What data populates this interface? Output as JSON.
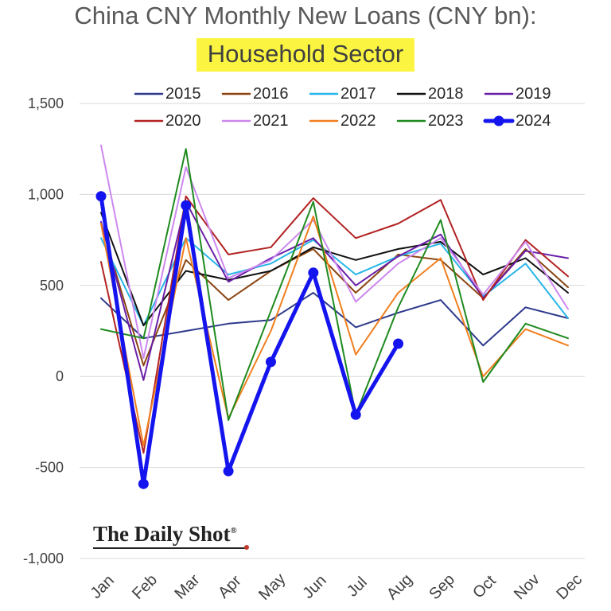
{
  "title": {
    "line1": "China CNY Monthly New Loans (CNY bn):",
    "line2": "Household Sector",
    "highlight_color": "#fbf542"
  },
  "watermark": "The Daily Shot",
  "watermark_mark": "®",
  "chart_data": {
    "type": "line",
    "title": "China CNY Monthly New Loans (CNY bn): Household Sector",
    "xlabel": "",
    "ylabel": "",
    "categories": [
      "Jan",
      "Feb",
      "Mar",
      "Apr",
      "May",
      "Jun",
      "Jul",
      "Aug",
      "Sep",
      "Oct",
      "Nov",
      "Dec"
    ],
    "ylim": [
      -1000,
      1500
    ],
    "yticks": [
      -1000,
      -500,
      0,
      500,
      1000,
      1500
    ],
    "ytick_labels": [
      "-1,000",
      "-500",
      "0",
      "500",
      "1,000",
      "1,500"
    ],
    "grid": "horizontal",
    "legend_position": "top",
    "series": [
      {
        "name": "2015",
        "color": "#2e3a8c",
        "width": 2,
        "values": [
          430,
          210,
          250,
          290,
          310,
          460,
          270,
          350,
          420,
          170,
          380,
          320
        ]
      },
      {
        "name": "2016",
        "color": "#8b4513",
        "width": 2,
        "values": [
          840,
          60,
          640,
          420,
          580,
          700,
          460,
          670,
          640,
          430,
          700,
          490
        ]
      },
      {
        "name": "2017",
        "color": "#29b6e8",
        "width": 2,
        "values": [
          760,
          280,
          760,
          560,
          620,
          750,
          560,
          660,
          730,
          440,
          620,
          320
        ]
      },
      {
        "name": "2018",
        "color": "#111111",
        "width": 2,
        "values": [
          900,
          280,
          580,
          530,
          580,
          710,
          640,
          700,
          740,
          560,
          650,
          460
        ]
      },
      {
        "name": "2019",
        "color": "#6a1fa8",
        "width": 2,
        "values": [
          850,
          -20,
          960,
          520,
          650,
          760,
          500,
          660,
          780,
          430,
          690,
          650
        ]
      },
      {
        "name": "2020",
        "color": "#b22222",
        "width": 2,
        "values": [
          630,
          -420,
          990,
          670,
          710,
          980,
          760,
          840,
          970,
          420,
          750,
          550
        ]
      },
      {
        "name": "2021",
        "color": "#cc88ee",
        "width": 2,
        "values": [
          1270,
          100,
          1150,
          540,
          640,
          860,
          410,
          620,
          760,
          450,
          740,
          370
        ]
      },
      {
        "name": "2022",
        "color": "#f07f1f",
        "width": 2,
        "values": [
          840,
          -380,
          760,
          -230,
          250,
          880,
          120,
          460,
          650,
          0,
          260,
          170
        ]
      },
      {
        "name": "2023",
        "color": "#1f8a1f",
        "width": 2,
        "values": [
          260,
          210,
          1250,
          -240,
          360,
          960,
          -210,
          380,
          860,
          -30,
          290,
          210
        ]
      },
      {
        "name": "2024",
        "color": "#1414ee",
        "width": 5,
        "marker": true,
        "values": [
          990,
          -590,
          940,
          -520,
          80,
          570,
          -210,
          180,
          null,
          null,
          null,
          null
        ]
      }
    ]
  }
}
